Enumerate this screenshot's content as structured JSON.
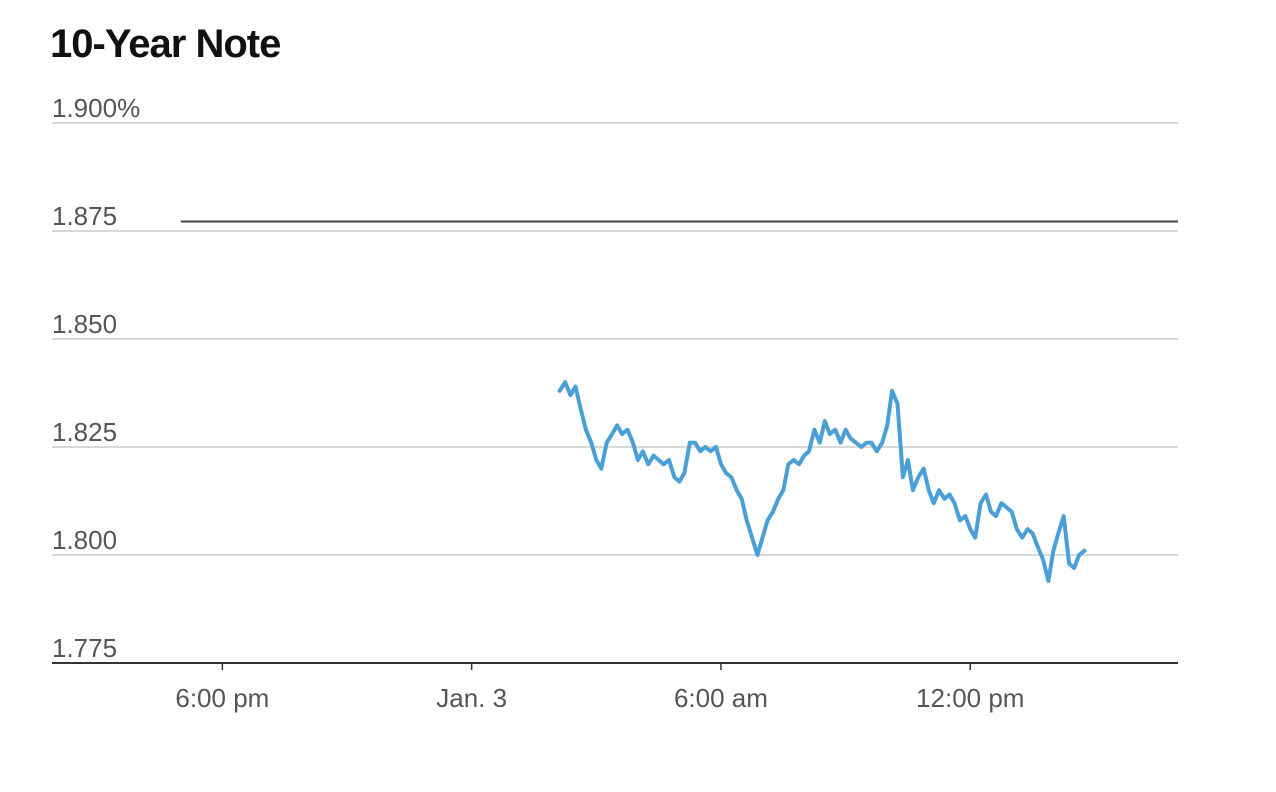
{
  "title": "10-Year Note",
  "chart_data": {
    "type": "line",
    "title": "10-Year Note",
    "xlabel": "",
    "ylabel": "",
    "x_ticks": [
      "6:00 pm",
      "Jan. 3",
      "6:00 am",
      "12:00 pm"
    ],
    "x_tick_hours": [
      18,
      24,
      30,
      36
    ],
    "xlim_hours": [
      13.9,
      41.0
    ],
    "y_ticks": [
      "1.900%",
      "1.875",
      "1.850",
      "1.825",
      "1.800",
      "1.775"
    ],
    "y_tick_values": [
      1.9,
      1.875,
      1.85,
      1.825,
      1.8,
      1.775
    ],
    "ylim": [
      1.775,
      1.9
    ],
    "grid": true,
    "reference_line": {
      "value": 1.8772,
      "start_hour": 17.0,
      "color": "#444444"
    },
    "series": [
      {
        "color": "#4a9fd8",
        "points": [
          [
            26.12,
            1.838
          ],
          [
            26.25,
            1.84
          ],
          [
            26.38,
            1.837
          ],
          [
            26.5,
            1.839
          ],
          [
            26.62,
            1.834
          ],
          [
            26.75,
            1.829
          ],
          [
            26.88,
            1.826
          ],
          [
            27.0,
            1.822
          ],
          [
            27.12,
            1.82
          ],
          [
            27.25,
            1.826
          ],
          [
            27.38,
            1.828
          ],
          [
            27.5,
            1.83
          ],
          [
            27.62,
            1.828
          ],
          [
            27.75,
            1.829
          ],
          [
            27.88,
            1.826
          ],
          [
            28.0,
            1.822
          ],
          [
            28.12,
            1.824
          ],
          [
            28.25,
            1.821
          ],
          [
            28.38,
            1.823
          ],
          [
            28.5,
            1.822
          ],
          [
            28.62,
            1.821
          ],
          [
            28.75,
            1.822
          ],
          [
            28.88,
            1.818
          ],
          [
            29.0,
            1.817
          ],
          [
            29.12,
            1.819
          ],
          [
            29.25,
            1.826
          ],
          [
            29.38,
            1.826
          ],
          [
            29.5,
            1.824
          ],
          [
            29.62,
            1.825
          ],
          [
            29.75,
            1.824
          ],
          [
            29.88,
            1.825
          ],
          [
            30.0,
            1.821
          ],
          [
            30.12,
            1.819
          ],
          [
            30.25,
            1.818
          ],
          [
            30.38,
            1.815
          ],
          [
            30.5,
            1.813
          ],
          [
            30.62,
            1.808
          ],
          [
            30.75,
            1.804
          ],
          [
            30.88,
            1.8
          ],
          [
            31.0,
            1.804
          ],
          [
            31.12,
            1.808
          ],
          [
            31.25,
            1.81
          ],
          [
            31.38,
            1.813
          ],
          [
            31.5,
            1.815
          ],
          [
            31.62,
            1.821
          ],
          [
            31.75,
            1.822
          ],
          [
            31.88,
            1.821
          ],
          [
            32.0,
            1.823
          ],
          [
            32.12,
            1.824
          ],
          [
            32.25,
            1.829
          ],
          [
            32.38,
            1.826
          ],
          [
            32.5,
            1.831
          ],
          [
            32.62,
            1.828
          ],
          [
            32.75,
            1.829
          ],
          [
            32.88,
            1.826
          ],
          [
            33.0,
            1.829
          ],
          [
            33.12,
            1.827
          ],
          [
            33.25,
            1.826
          ],
          [
            33.38,
            1.825
          ],
          [
            33.5,
            1.826
          ],
          [
            33.62,
            1.826
          ],
          [
            33.75,
            1.824
          ],
          [
            33.88,
            1.826
          ],
          [
            34.0,
            1.83
          ],
          [
            34.12,
            1.838
          ],
          [
            34.25,
            1.835
          ],
          [
            34.38,
            1.818
          ],
          [
            34.5,
            1.822
          ],
          [
            34.62,
            1.815
          ],
          [
            34.75,
            1.818
          ],
          [
            34.88,
            1.82
          ],
          [
            35.0,
            1.815
          ],
          [
            35.12,
            1.812
          ],
          [
            35.25,
            1.815
          ],
          [
            35.38,
            1.813
          ],
          [
            35.5,
            1.814
          ],
          [
            35.62,
            1.812
          ],
          [
            35.75,
            1.808
          ],
          [
            35.88,
            1.809
          ],
          [
            36.0,
            1.806
          ],
          [
            36.12,
            1.804
          ],
          [
            36.25,
            1.812
          ],
          [
            36.38,
            1.814
          ],
          [
            36.5,
            1.81
          ],
          [
            36.62,
            1.809
          ],
          [
            36.75,
            1.812
          ],
          [
            36.88,
            1.811
          ],
          [
            37.0,
            1.81
          ],
          [
            37.12,
            1.806
          ],
          [
            37.25,
            1.804
          ],
          [
            37.38,
            1.806
          ],
          [
            37.5,
            1.805
          ],
          [
            37.62,
            1.802
          ],
          [
            37.75,
            1.799
          ],
          [
            37.88,
            1.794
          ],
          [
            38.0,
            1.801
          ],
          [
            38.12,
            1.805
          ],
          [
            38.25,
            1.809
          ],
          [
            38.38,
            1.798
          ],
          [
            38.5,
            1.797
          ],
          [
            38.62,
            1.8
          ],
          [
            38.75,
            1.801
          ]
        ]
      }
    ]
  }
}
